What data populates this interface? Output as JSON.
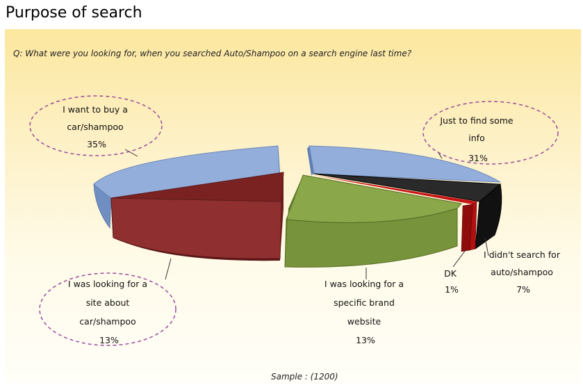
{
  "page": {
    "title": "Purpose of search"
  },
  "chart_data": {
    "type": "pie",
    "title": "Q: What were you looking for, when you searched Auto/Shampoo on a search engine last time?",
    "note": "Sample : (1200)",
    "slices": [
      {
        "label": "Just to find some info",
        "percent_label": "31%",
        "value": 31,
        "color": "#8aa6d4"
      },
      {
        "label": "I want to buy a car/shampoo",
        "percent_label": "35%",
        "value": 35,
        "color": "#8aa6d4"
      },
      {
        "label": "I was looking for a site about car/shampoo",
        "percent_label": "13%",
        "value": 13,
        "color": "#8b2c2c"
      },
      {
        "label": "I was looking for a specific brand website",
        "percent_label": "13%",
        "value": 13,
        "color": "#77933c"
      },
      {
        "label": "DK",
        "percent_label": "1%",
        "value": 1,
        "color": "#b01010"
      },
      {
        "label": "I didn't search for auto/shampoo",
        "percent_label": "7%",
        "value": 7,
        "color": "#1e1e1e"
      }
    ],
    "labels": {
      "info": [
        "Just to find some",
        "info",
        "31%"
      ],
      "buy": [
        "I want to buy a",
        "car/shampoo",
        "35%"
      ],
      "site": [
        "I was looking for a",
        "site about",
        "car/shampoo",
        "13%"
      ],
      "brand": [
        "I was looking for a",
        "specific brand",
        "website",
        "13%"
      ],
      "dk": [
        "DK",
        "1%"
      ],
      "nosearch": [
        "I didn't search for",
        "auto/shampoo",
        "7%"
      ]
    }
  }
}
